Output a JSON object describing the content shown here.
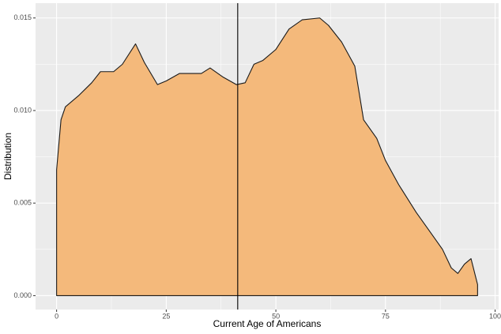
{
  "chart_data": {
    "type": "area",
    "x_label": "Current Age of Americans",
    "y_label": "Distribution",
    "x": [
      0,
      1,
      2,
      5,
      8,
      10,
      13,
      15,
      18,
      20,
      23,
      25,
      28,
      30,
      33,
      35,
      38,
      41,
      43,
      45,
      47,
      50,
      53,
      56,
      60,
      62,
      65,
      68,
      70,
      73,
      75,
      78,
      82,
      85,
      88,
      90,
      91.5,
      93,
      94.5,
      96
    ],
    "values": [
      0.0068,
      0.0095,
      0.0102,
      0.0108,
      0.0115,
      0.0121,
      0.0121,
      0.0125,
      0.0136,
      0.0126,
      0.0114,
      0.0116,
      0.012,
      0.012,
      0.012,
      0.0123,
      0.0118,
      0.0114,
      0.0115,
      0.0125,
      0.0127,
      0.0133,
      0.0144,
      0.0149,
      0.015,
      0.0146,
      0.0137,
      0.0124,
      0.0095,
      0.0085,
      0.0073,
      0.006,
      0.0045,
      0.0035,
      0.0025,
      0.0015,
      0.0012,
      0.0017,
      0.002,
      0.0006
    ],
    "color": "#f4b97b",
    "vline": 41.3,
    "xlim": [
      -4.8,
      100.8
    ],
    "ylim": [
      -0.00075,
      0.0158
    ],
    "xticks": [
      0,
      25,
      50,
      75,
      100
    ],
    "yticks": [
      {
        "value": 0,
        "label": "0.000"
      },
      {
        "value": 0.005,
        "label": "0.005"
      },
      {
        "value": 0.01,
        "label": "0.010"
      },
      {
        "value": 0.015,
        "label": "0.015"
      }
    ],
    "grid": true
  }
}
